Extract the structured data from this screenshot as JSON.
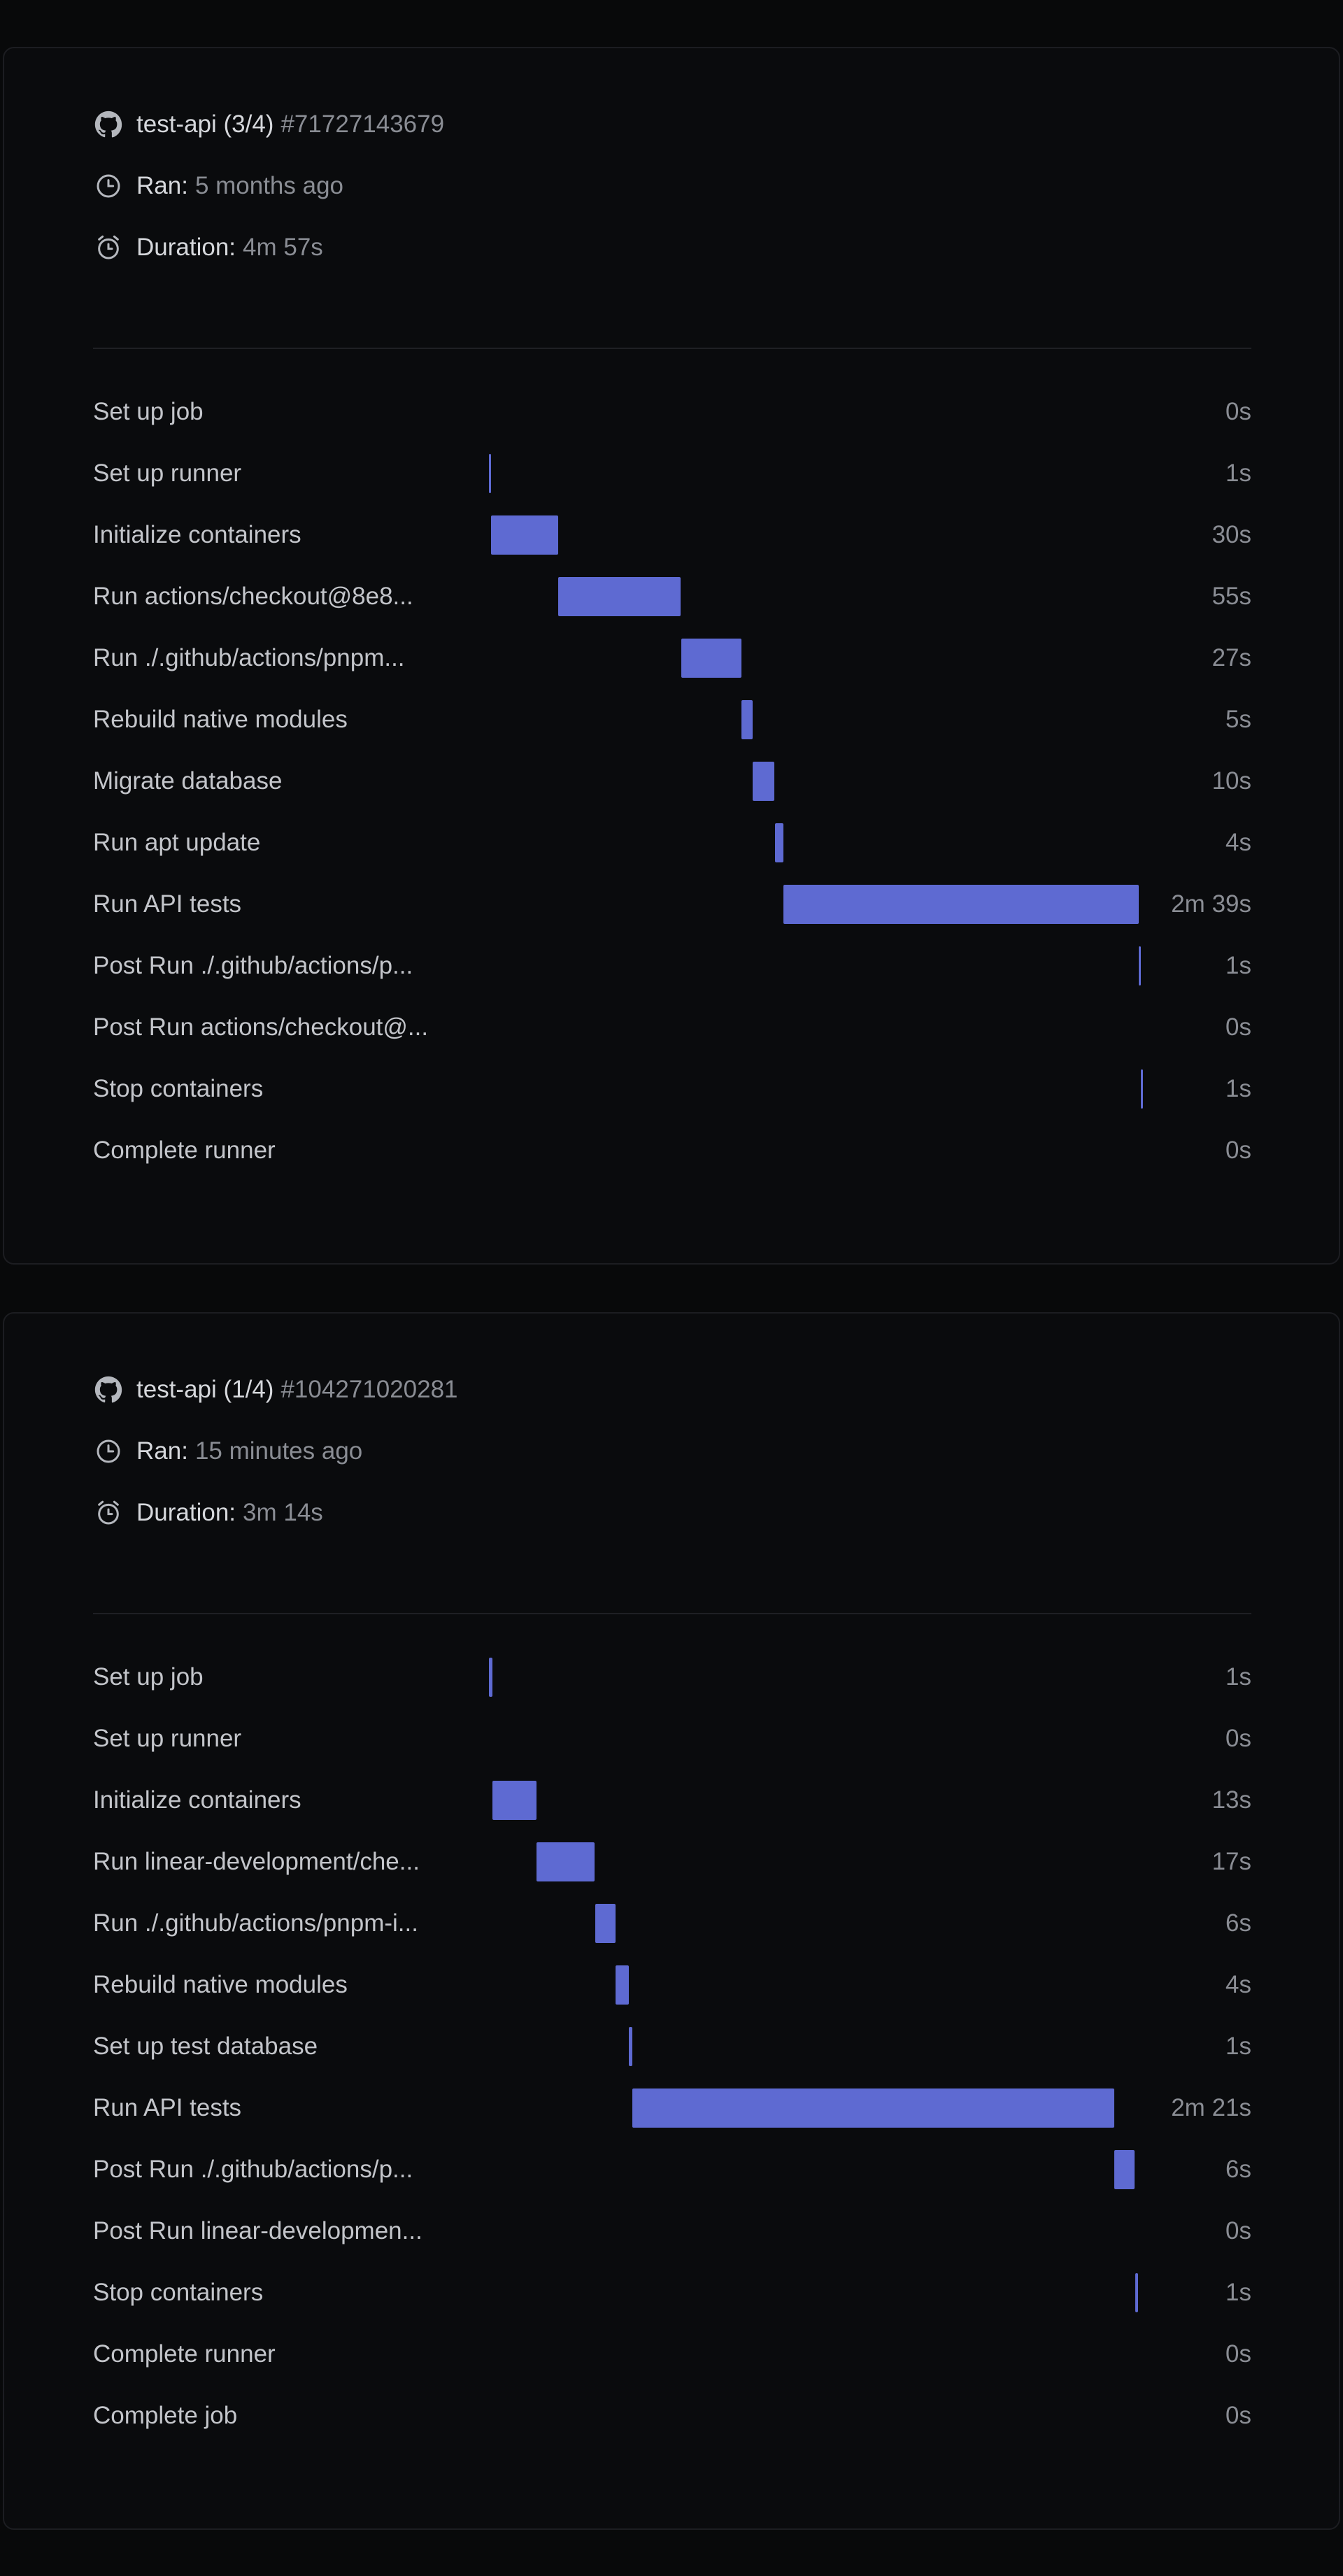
{
  "runs": [
    {
      "job_name": "test-api (3/4)",
      "run_id": "#71727143679",
      "ran_label": "Ran:",
      "ran_value": "5 months ago",
      "duration_label": "Duration:",
      "duration_value": "4m 57s",
      "total_seconds": 297,
      "steps": [
        {
          "name": "Set up job",
          "duration": "0s",
          "seconds": 0
        },
        {
          "name": "Set up runner",
          "duration": "1s",
          "seconds": 1
        },
        {
          "name": "Initialize containers",
          "duration": "30s",
          "seconds": 30
        },
        {
          "name": "Run actions/checkout@8e8...",
          "duration": "55s",
          "seconds": 55
        },
        {
          "name": "Run ./.github/actions/pnpm...",
          "duration": "27s",
          "seconds": 27
        },
        {
          "name": "Rebuild native modules",
          "duration": "5s",
          "seconds": 5
        },
        {
          "name": "Migrate database",
          "duration": "10s",
          "seconds": 10
        },
        {
          "name": "Run apt update",
          "duration": "4s",
          "seconds": 4
        },
        {
          "name": "Run API tests",
          "duration": "2m 39s",
          "seconds": 159
        },
        {
          "name": "Post Run ./.github/actions/p...",
          "duration": "1s",
          "seconds": 1
        },
        {
          "name": "Post Run actions/checkout@...",
          "duration": "0s",
          "seconds": 0
        },
        {
          "name": "Stop containers",
          "duration": "1s",
          "seconds": 1
        },
        {
          "name": "Complete runner",
          "duration": "0s",
          "seconds": 0
        }
      ]
    },
    {
      "job_name": "test-api (1/4)",
      "run_id": "#104271020281",
      "ran_label": "Ran:",
      "ran_value": "15 minutes ago",
      "duration_label": "Duration:",
      "duration_value": "3m 14s",
      "total_seconds": 194,
      "steps": [
        {
          "name": "Set up job",
          "duration": "1s",
          "seconds": 1
        },
        {
          "name": "Set up runner",
          "duration": "0s",
          "seconds": 0
        },
        {
          "name": "Initialize containers",
          "duration": "13s",
          "seconds": 13
        },
        {
          "name": "Run linear-development/che...",
          "duration": "17s",
          "seconds": 17
        },
        {
          "name": "Run ./.github/actions/pnpm-i...",
          "duration": "6s",
          "seconds": 6
        },
        {
          "name": "Rebuild native modules",
          "duration": "4s",
          "seconds": 4
        },
        {
          "name": "Set up test database",
          "duration": "1s",
          "seconds": 1
        },
        {
          "name": "Run API tests",
          "duration": "2m 21s",
          "seconds": 141
        },
        {
          "name": "Post Run ./.github/actions/p...",
          "duration": "6s",
          "seconds": 6
        },
        {
          "name": "Post Run linear-developmen...",
          "duration": "0s",
          "seconds": 0
        },
        {
          "name": "Stop containers",
          "duration": "1s",
          "seconds": 1
        },
        {
          "name": "Complete runner",
          "duration": "0s",
          "seconds": 0
        },
        {
          "name": "Complete job",
          "duration": "0s",
          "seconds": 0
        }
      ]
    }
  ],
  "colors": {
    "background": "#08090a",
    "card": "#0a0b0d",
    "bar": "#5e6ad2",
    "text_primary": "#d6d8dc",
    "text_muted": "#8a8d94"
  },
  "icons": {
    "job": "github-icon",
    "ran": "clock-icon",
    "duration": "alarm-clock-icon"
  }
}
